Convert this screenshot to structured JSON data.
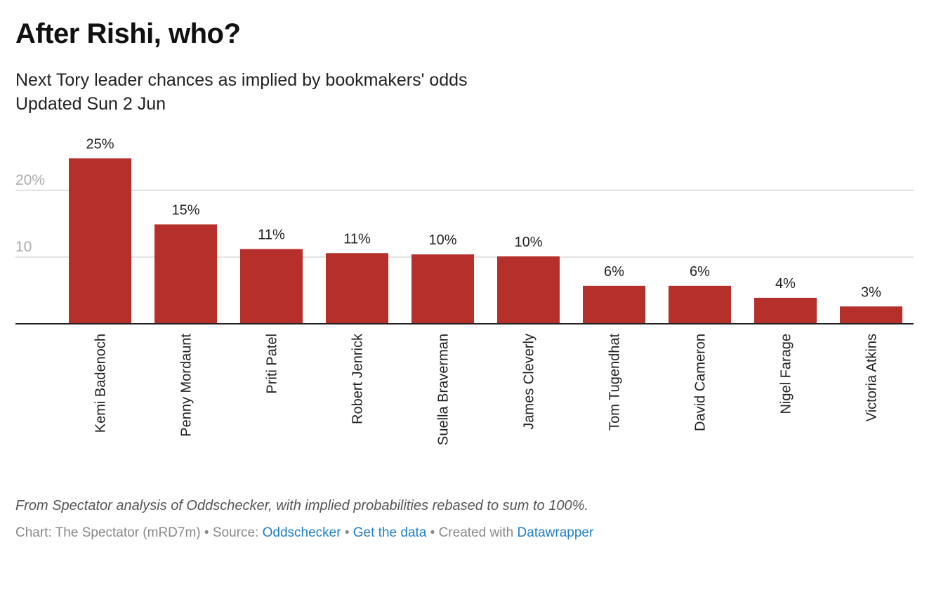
{
  "chart_data": {
    "type": "bar",
    "title": "After Rishi, who?",
    "subtitle": "Next Tory leader chances as implied by bookmakers' odds",
    "updated": "Updated Sun 2 Jun",
    "categories": [
      "Kemi Badenoch",
      "Penny Mordaunt",
      "Priti Patel",
      "Robert Jenrick",
      "Suella Braverman",
      "James Cleverly",
      "Tom Tugendhat",
      "David Cameron",
      "Nigel Farage",
      "Victoria Atkins"
    ],
    "values": [
      24.8,
      14.9,
      11.2,
      10.6,
      10.4,
      10.1,
      5.7,
      5.7,
      3.9,
      2.6
    ],
    "data_labels": [
      "25%",
      "15%",
      "11%",
      "11%",
      "10%",
      "10%",
      "6%",
      "6%",
      "4%",
      "3%"
    ],
    "yticks": [
      {
        "value": 10,
        "label": "10"
      },
      {
        "value": 20,
        "label": "20%"
      }
    ],
    "ylim": [
      0,
      25
    ],
    "grid": true,
    "bar_color": "#b5302a",
    "xlabel": "",
    "ylabel": ""
  },
  "footer": {
    "note": "From Spectator analysis of Oddschecker, with implied probabilities rebased to sum to 100%.",
    "chart_credit": "Chart: The Spectator (mRD7m)",
    "sep": " • ",
    "source_label": "Source: ",
    "source_link": "Oddschecker",
    "get_data": "Get the data",
    "created_with": "Created with ",
    "datawrapper": "Datawrapper"
  }
}
